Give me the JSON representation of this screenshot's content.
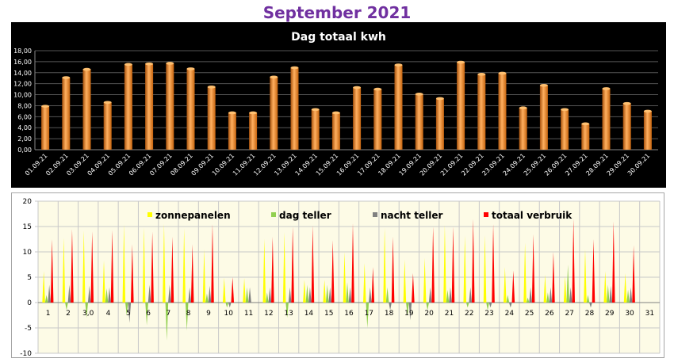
{
  "page_title": "September 2021",
  "chart_data": [
    {
      "type": "bar",
      "title": "Dag totaal kwh",
      "xlabel": "",
      "ylabel": "",
      "ylim": [
        0,
        18
      ],
      "yticks": [
        "0,00",
        "2,00",
        "4,00",
        "6,00",
        "8,00",
        "10,00",
        "12,00",
        "14,00",
        "16,00",
        "18,00"
      ],
      "grid": true,
      "colors": {
        "background": "#000000",
        "bar": "#f08a24",
        "gridline": "#555555",
        "text": "#ffffff"
      },
      "categories": [
        "01.09.21",
        "02.09.21",
        "03.09.21",
        "04.09.21",
        "05.09.21",
        "06.09.21",
        "07.09.21",
        "08.09.21",
        "09.09.21",
        "10.09.21",
        "11.09.21",
        "12.09.21",
        "13.09.21",
        "14.09.21",
        "15.09.21",
        "16.09.21",
        "17.09.21",
        "18.09.21",
        "19.09.21",
        "20.09.21",
        "21.09.21",
        "22.09.21",
        "23.09.21",
        "24.09.21",
        "25.09.21",
        "26.09.21",
        "27.09.21",
        "28.09.21",
        "29.09.21",
        "30.09.21"
      ],
      "values": [
        7.9,
        13.1,
        14.6,
        8.6,
        15.5,
        15.6,
        15.7,
        14.7,
        11.4,
        6.7,
        6.7,
        13.2,
        14.9,
        7.3,
        6.7,
        11.3,
        11.0,
        15.4,
        10.1,
        9.3,
        15.9,
        13.7,
        13.9,
        7.6,
        11.7,
        7.3,
        4.7,
        11.1,
        8.4,
        7.0
      ]
    },
    {
      "type": "area",
      "title": "",
      "ylim": [
        -10,
        20
      ],
      "yticks": [
        "-10",
        "-5",
        "0",
        "5",
        "10",
        "15",
        "20"
      ],
      "grid": true,
      "legend_position": "top",
      "colors": {
        "background": "#fdfbe6",
        "zonnepanelen": "#ffff00",
        "dag teller": "#92d050",
        "nacht teller": "#808080",
        "totaal verbruik": "#ff0000",
        "gridline": "#c8c8c8"
      },
      "categories": [
        "1",
        "2",
        "3,0",
        "4",
        "5",
        "6",
        "7",
        "8",
        "9",
        "10",
        "11",
        "12",
        "13",
        "14",
        "15",
        "16",
        "17",
        "18",
        "19",
        "20",
        "21",
        "22",
        "23",
        "24",
        "25",
        "26",
        "27",
        "28",
        "29",
        "30",
        "31"
      ],
      "series": [
        {
          "name": "zonnepanelen",
          "values": [
            6.2,
            12.8,
            14.2,
            8.3,
            15.4,
            14.8,
            15.5,
            14.6,
            10.5,
            4.9,
            4.8,
            12.6,
            13.9,
            4.5,
            4.5,
            10.0,
            7.8,
            14.7,
            8.5,
            8.8,
            15.3,
            13.2,
            13.3,
            7.0,
            11.8,
            5.5,
            5.2,
            10.5,
            6.2,
            5.8,
            0
          ]
        },
        {
          "name": "dag teller",
          "values": [
            1.5,
            -1.5,
            -3.0,
            2.8,
            -2.5,
            -4.5,
            -7.5,
            -5.5,
            1.8,
            -1.0,
            3.0,
            2.0,
            -3.0,
            3.5,
            3.5,
            4.0,
            -5.0,
            3.0,
            -2.5,
            -1.5,
            2.5,
            -1.0,
            -1.5,
            1.5,
            1.0,
            2.0,
            7.5,
            1.5,
            3.5,
            2.5,
            0
          ]
        },
        {
          "name": "nacht teller",
          "values": [
            3.5,
            3.5,
            3.3,
            3.0,
            -4.0,
            3.5,
            3.5,
            3.0,
            3.3,
            -1.0,
            3.0,
            3.0,
            3.0,
            3.0,
            3.0,
            3.0,
            3.0,
            -1.5,
            -3.5,
            3.0,
            3.0,
            3.0,
            -1.0,
            -1.0,
            3.0,
            3.0,
            3.0,
            -1.0,
            3.3,
            3.0,
            0
          ]
        },
        {
          "name": "totaal verbruik",
          "values": [
            12.5,
            14.5,
            14.0,
            14.3,
            11.5,
            14.0,
            13.0,
            11.5,
            15.5,
            5.0,
            0,
            13.0,
            15.0,
            15.2,
            12.3,
            15.6,
            7.0,
            13.0,
            5.8,
            15.0,
            15.0,
            16.5,
            15.5,
            6.3,
            13.5,
            10.0,
            16.5,
            12.5,
            16.0,
            11.3,
            0
          ]
        }
      ]
    }
  ]
}
